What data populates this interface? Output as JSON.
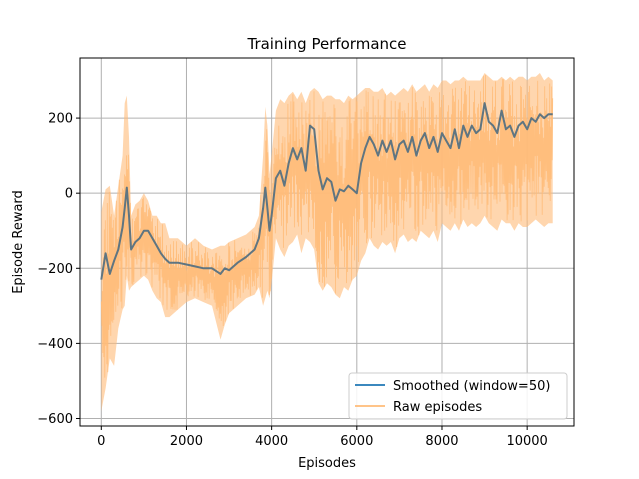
{
  "chart_data": {
    "type": "line",
    "title": "Training Performance",
    "xlabel": "Episodes",
    "ylabel": "Episode Reward",
    "xlim": [
      -500,
      11100
    ],
    "ylim": [
      -620,
      360
    ],
    "xticks": [
      0,
      2000,
      4000,
      6000,
      8000,
      10000
    ],
    "xtick_labels": [
      "0",
      "2000",
      "4000",
      "6000",
      "8000",
      "10000"
    ],
    "yticks": [
      -600,
      -400,
      -200,
      0,
      200
    ],
    "ytick_labels": [
      "−600",
      "−400",
      "−200",
      "0",
      "200"
    ],
    "grid": true,
    "legend_position": "lower-right",
    "series": [
      {
        "name": "Smoothed (window=50)",
        "color": "#1f77b4",
        "x": [
          0,
          100,
          200,
          300,
          400,
          500,
          550,
          600,
          650,
          700,
          800,
          900,
          1000,
          1100,
          1200,
          1300,
          1400,
          1500,
          1600,
          1800,
          2000,
          2200,
          2400,
          2600,
          2800,
          2900,
          3000,
          3200,
          3400,
          3600,
          3700,
          3800,
          3850,
          3900,
          3950,
          4000,
          4100,
          4200,
          4300,
          4400,
          4500,
          4600,
          4700,
          4800,
          4900,
          5000,
          5100,
          5200,
          5300,
          5400,
          5500,
          5600,
          5700,
          5800,
          5900,
          6000,
          6100,
          6200,
          6300,
          6400,
          6500,
          6600,
          6700,
          6800,
          6900,
          7000,
          7100,
          7200,
          7300,
          7400,
          7500,
          7600,
          7700,
          7800,
          7900,
          8000,
          8100,
          8200,
          8300,
          8400,
          8500,
          8600,
          8700,
          8800,
          8900,
          9000,
          9100,
          9200,
          9300,
          9400,
          9500,
          9600,
          9700,
          9800,
          9900,
          10000,
          10100,
          10200,
          10300,
          10400,
          10500,
          10600
        ],
        "y": [
          -230,
          -160,
          -215,
          -180,
          -150,
          -90,
          -40,
          15,
          -60,
          -150,
          -130,
          -120,
          -100,
          -100,
          -120,
          -140,
          -160,
          -175,
          -185,
          -185,
          -190,
          -195,
          -200,
          -200,
          -215,
          -200,
          -205,
          -185,
          -170,
          -150,
          -120,
          -40,
          15,
          -40,
          -100,
          -60,
          40,
          60,
          20,
          80,
          120,
          90,
          120,
          60,
          180,
          170,
          60,
          10,
          40,
          30,
          -20,
          10,
          5,
          20,
          10,
          0,
          80,
          120,
          150,
          130,
          100,
          140,
          110,
          140,
          90,
          130,
          140,
          110,
          150,
          100,
          140,
          160,
          120,
          150,
          110,
          160,
          140,
          120,
          170,
          120,
          180,
          150,
          180,
          160,
          170,
          240,
          190,
          180,
          160,
          220,
          170,
          180,
          150,
          180,
          190,
          170,
          200,
          190,
          210,
          200,
          210,
          210
        ]
      },
      {
        "name": "Raw episodes",
        "color": "#ffbb78",
        "x": [
          0,
          100,
          200,
          300,
          400,
          500,
          550,
          600,
          650,
          700,
          800,
          900,
          1000,
          1100,
          1200,
          1300,
          1400,
          1500,
          1600,
          1800,
          2000,
          2200,
          2400,
          2600,
          2800,
          2900,
          3000,
          3200,
          3400,
          3600,
          3700,
          3800,
          3850,
          3900,
          3950,
          4000,
          4100,
          4200,
          4300,
          4400,
          4500,
          4600,
          4700,
          4800,
          4900,
          5000,
          5100,
          5200,
          5300,
          5400,
          5500,
          5600,
          5700,
          5800,
          5900,
          6000,
          6100,
          6200,
          6300,
          6400,
          6500,
          6600,
          6700,
          6800,
          6900,
          7000,
          7100,
          7200,
          7300,
          7400,
          7500,
          7600,
          7700,
          7800,
          7900,
          8000,
          8100,
          8200,
          8300,
          8400,
          8500,
          8600,
          8700,
          8800,
          8900,
          9000,
          9100,
          9200,
          9300,
          9400,
          9500,
          9600,
          9700,
          9800,
          9900,
          10000,
          10100,
          10200,
          10300,
          10400,
          10500,
          10600
        ],
        "upper": [
          -50,
          10,
          20,
          -60,
          20,
          100,
          240,
          260,
          150,
          -60,
          -30,
          -20,
          0,
          -20,
          -60,
          -60,
          -80,
          -80,
          -120,
          -120,
          -140,
          -120,
          -140,
          -150,
          -140,
          -140,
          -130,
          -120,
          -110,
          -90,
          -60,
          100,
          230,
          180,
          50,
          100,
          220,
          250,
          240,
          260,
          270,
          250,
          270,
          240,
          270,
          280,
          270,
          250,
          260,
          260,
          250,
          250,
          240,
          260,
          250,
          260,
          270,
          280,
          280,
          270,
          270,
          280,
          260,
          270,
          260,
          270,
          280,
          270,
          290,
          270,
          280,
          290,
          270,
          290,
          280,
          300,
          300,
          290,
          300,
          300,
          310,
          300,
          300,
          300,
          300,
          320,
          310,
          300,
          300,
          310,
          300,
          310,
          300,
          310,
          310,
          300,
          310,
          310,
          320,
          300,
          310,
          300
        ],
        "lower": [
          -580,
          -520,
          -440,
          -460,
          -360,
          -310,
          -300,
          -220,
          -260,
          -250,
          -240,
          -230,
          -220,
          -230,
          -260,
          -280,
          -290,
          -330,
          -330,
          -310,
          -290,
          -280,
          -290,
          -300,
          -390,
          -350,
          -320,
          -300,
          -280,
          -270,
          -250,
          -300,
          -280,
          -260,
          -280,
          -240,
          -120,
          -150,
          -170,
          -140,
          -130,
          -110,
          -160,
          -120,
          -130,
          -150,
          -240,
          -260,
          -240,
          -250,
          -270,
          -280,
          -250,
          -260,
          -230,
          -220,
          -180,
          -160,
          -120,
          -140,
          -150,
          -130,
          -140,
          -130,
          -160,
          -120,
          -110,
          -130,
          -120,
          -130,
          -100,
          -110,
          -120,
          -100,
          -130,
          -80,
          -90,
          -100,
          -80,
          -100,
          -70,
          -90,
          -80,
          -90,
          -80,
          -60,
          -80,
          -90,
          -100,
          -70,
          -80,
          -80,
          -100,
          -80,
          -90,
          -90,
          -80,
          -70,
          -80,
          -90,
          -80,
          -80
        ]
      }
    ]
  }
}
